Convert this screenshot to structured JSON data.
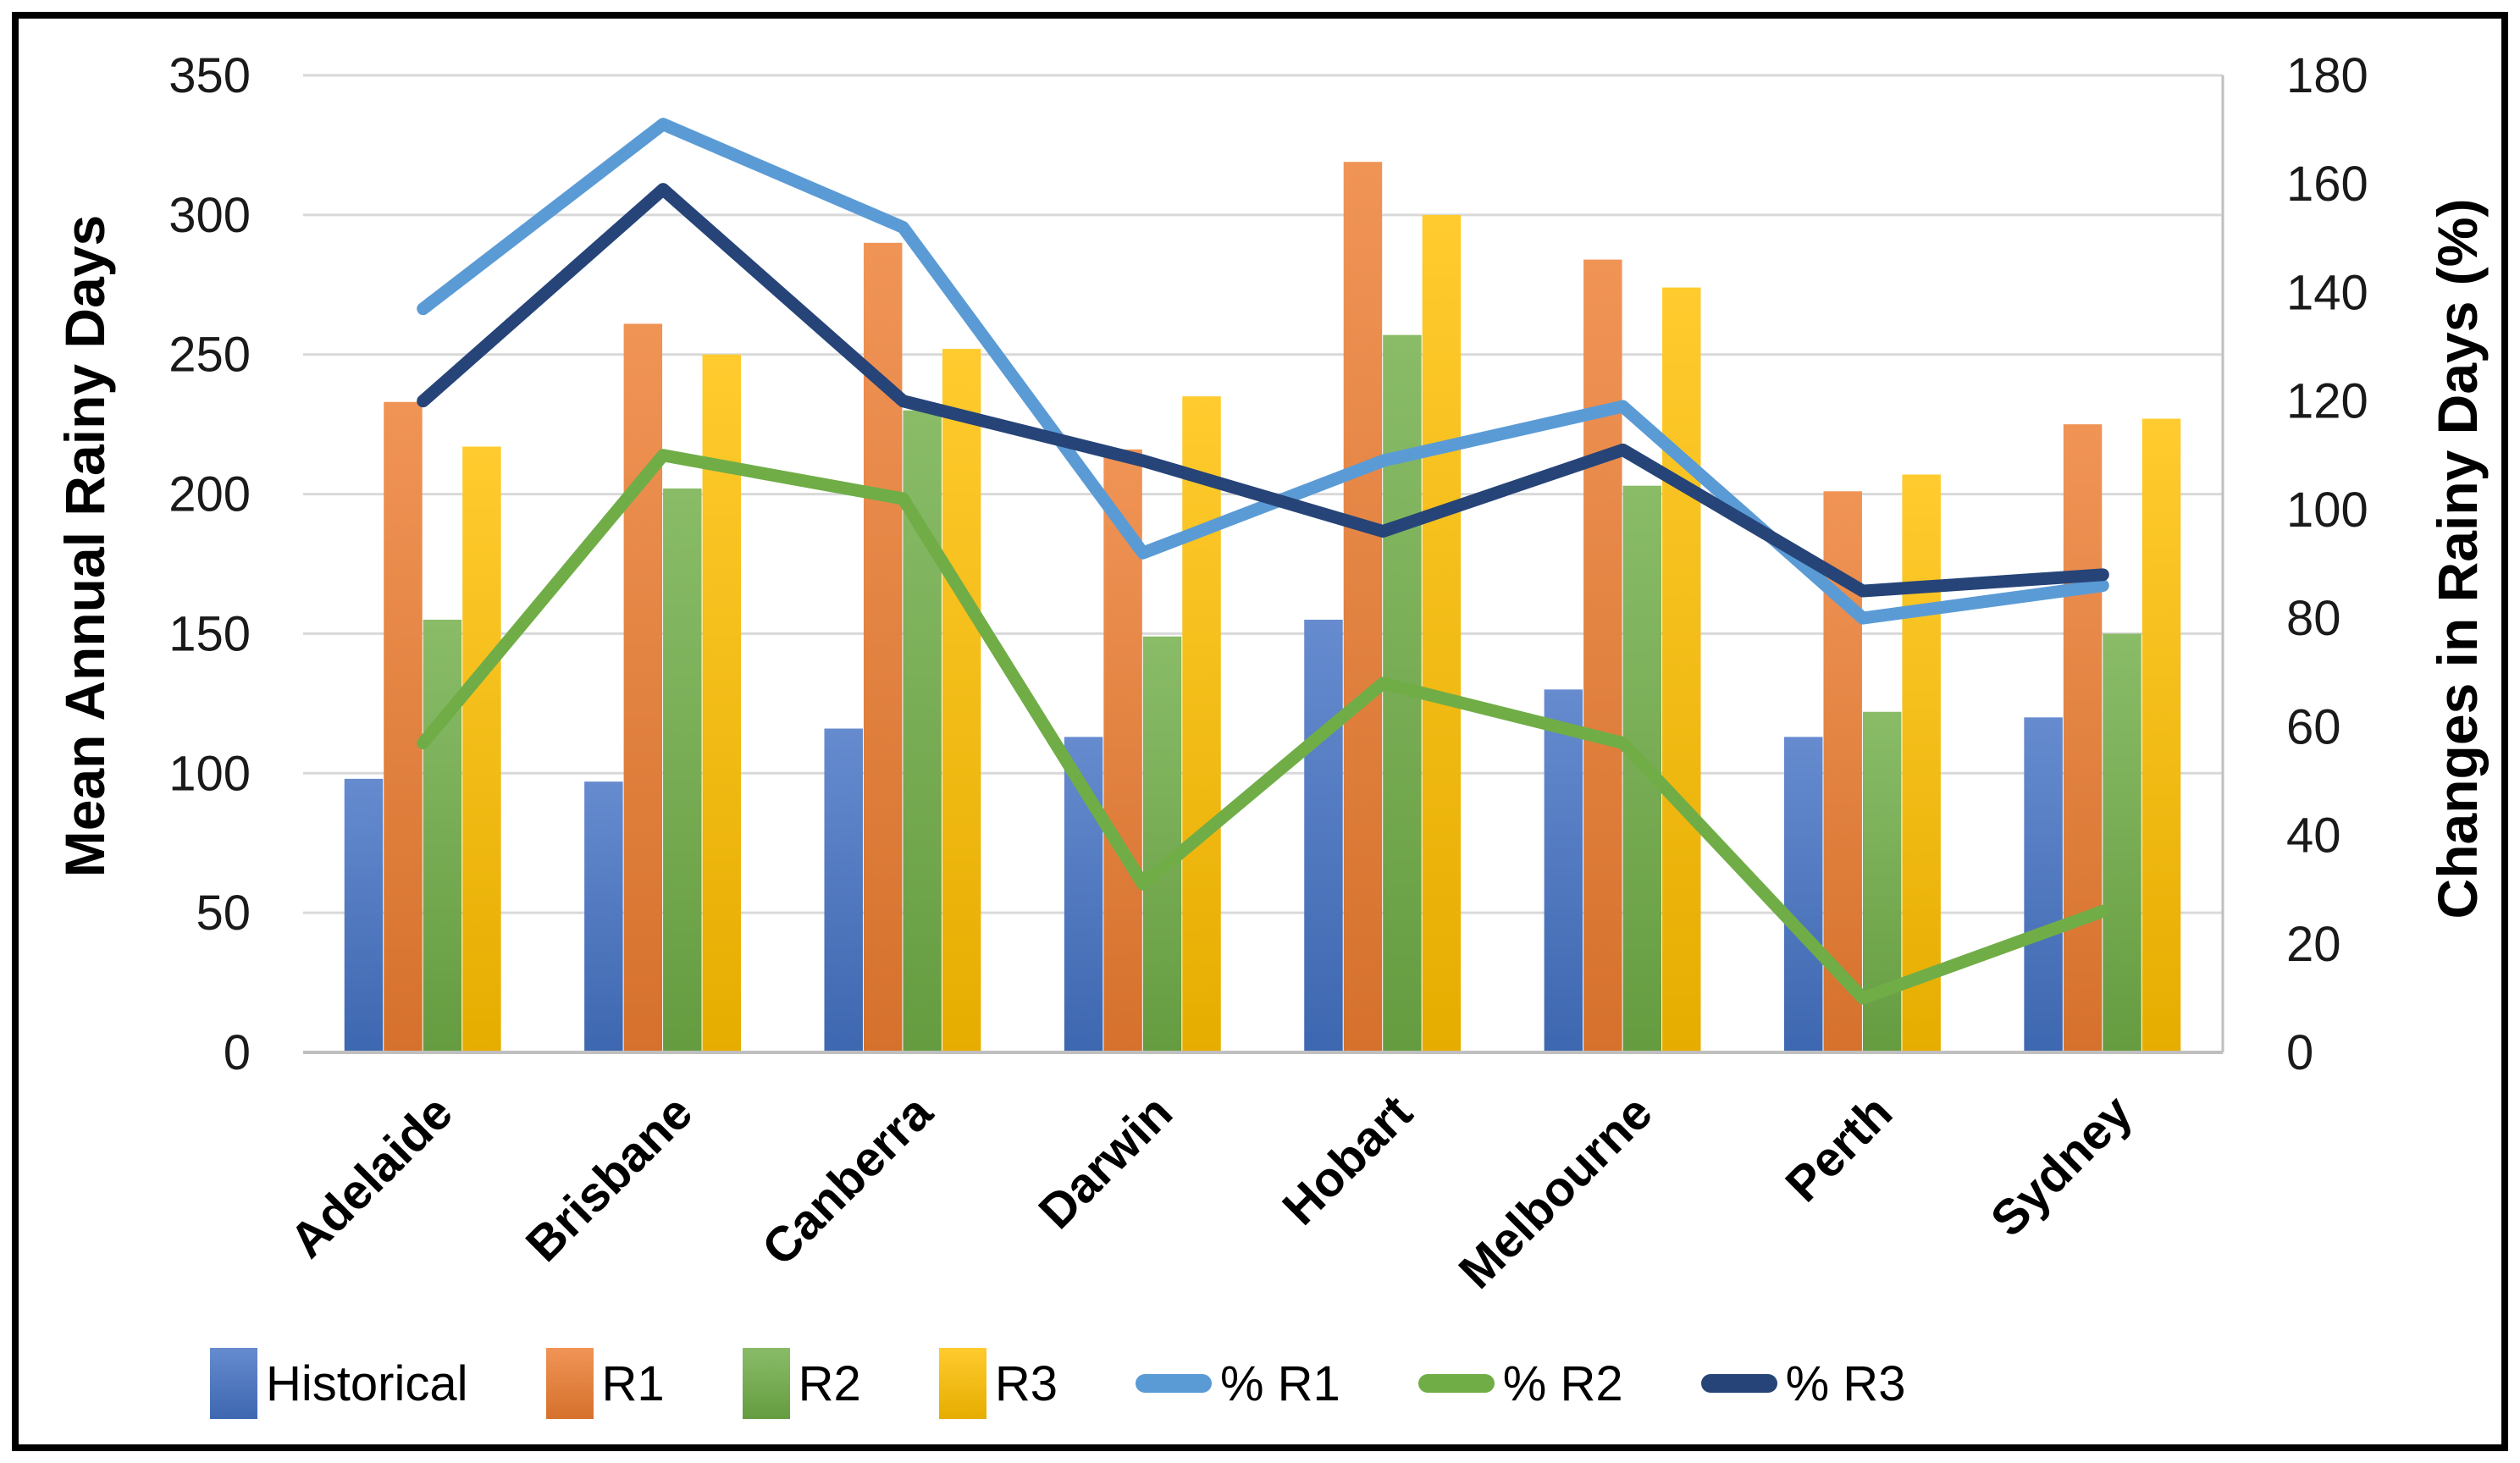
{
  "page": {
    "background": "#FFFFFF",
    "border_color": "#000000"
  },
  "chart_data": {
    "type": "combo-bar-line",
    "title": "",
    "categories": [
      "Adelaide",
      "Brisbane",
      "Canberra",
      "Darwin",
      "Hobart",
      "Melbourne",
      "Perth",
      "Sydney"
    ],
    "bar_series": [
      {
        "name": "Historical",
        "color": "#4472C4",
        "axis": "left",
        "values": [
          98,
          97,
          116,
          113,
          155,
          130,
          113,
          120
        ]
      },
      {
        "name": "R1",
        "color": "#ED7D31",
        "axis": "left",
        "values": [
          233,
          261,
          290,
          216,
          319,
          284,
          201,
          225
        ]
      },
      {
        "name": "R2",
        "color": "#70AD47",
        "axis": "left",
        "values": [
          155,
          202,
          230,
          149,
          257,
          203,
          122,
          150
        ]
      },
      {
        "name": "R3",
        "color": "#FFC000",
        "axis": "left",
        "values": [
          217,
          250,
          252,
          235,
          300,
          274,
          207,
          227
        ]
      }
    ],
    "line_series": [
      {
        "name": "% R1",
        "color": "#5B9BD5",
        "axis": "right",
        "values": [
          137,
          171,
          152,
          92,
          109,
          119,
          80,
          86
        ]
      },
      {
        "name": "% R2",
        "color": "#70AD47",
        "axis": "right",
        "values": [
          57,
          110,
          102,
          31,
          68,
          57,
          10,
          26
        ]
      },
      {
        "name": "% R3",
        "color": "#264478",
        "axis": "right",
        "values": [
          120,
          159,
          120,
          109,
          96,
          111,
          85,
          88
        ]
      }
    ],
    "left_axis": {
      "title": "Mean Annual Rainy Days",
      "min": 0,
      "max": 350,
      "tick_interval": 50,
      "tick_labels": [
        "350",
        "300",
        "250",
        "200",
        "150",
        "100",
        "50",
        "0"
      ]
    },
    "right_axis": {
      "title": "Changes in Rainy Days (%)",
      "min": 0,
      "max": 180,
      "tick_interval": 20,
      "tick_labels": [
        "180",
        "160",
        "140",
        "120",
        "100",
        "80",
        "60",
        "40",
        "20",
        "0"
      ]
    },
    "grid": true,
    "gridline_color": "#D9D9D9",
    "axis_line_color": "#BFBFBF",
    "legend_position": "bottom"
  },
  "legend": {
    "items": [
      {
        "label": "Historical",
        "swatch": "bar",
        "color": "#4472C4"
      },
      {
        "label": "R1",
        "swatch": "bar",
        "color": "#ED7D31"
      },
      {
        "label": "R2",
        "swatch": "bar",
        "color": "#70AD47"
      },
      {
        "label": "R3",
        "swatch": "bar",
        "color": "#FFC000"
      },
      {
        "label": "% R1",
        "swatch": "line",
        "color": "#5B9BD5"
      },
      {
        "label": "% R2",
        "swatch": "line",
        "color": "#70AD47"
      },
      {
        "label": "% R3",
        "swatch": "line",
        "color": "#264478"
      }
    ]
  }
}
